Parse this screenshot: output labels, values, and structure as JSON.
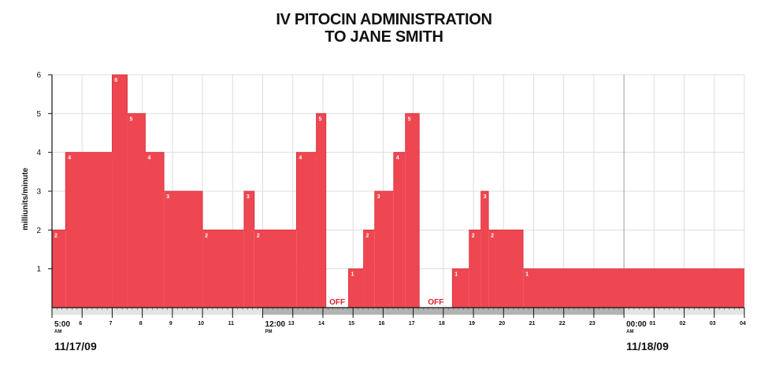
{
  "chart_data": {
    "type": "area",
    "title": [
      "IV PITOCIN ADMINISTRATION",
      "TO JANE SMITH"
    ],
    "ylabel": "milliunits/minute",
    "xlabel": "",
    "ylim": [
      0,
      6
    ],
    "yticks": [
      1,
      2,
      3,
      4,
      5,
      6
    ],
    "xlim_hours": [
      5,
      28
    ],
    "series_color": "#ee4752",
    "grid_color": "#dddddd",
    "night_band_color": "#b3b3b3",
    "day_band_color": "#e4e4e4",
    "x_ticks": [
      {
        "hour": 5,
        "label": "5:00",
        "sub": "AM",
        "major": true
      },
      {
        "hour": 6,
        "label": "6"
      },
      {
        "hour": 7,
        "label": "7"
      },
      {
        "hour": 8,
        "label": "8"
      },
      {
        "hour": 9,
        "label": "9"
      },
      {
        "hour": 10,
        "label": "10"
      },
      {
        "hour": 11,
        "label": "11"
      },
      {
        "hour": 12,
        "label": "12:00",
        "sub": "PM",
        "major": true
      },
      {
        "hour": 13,
        "label": "13"
      },
      {
        "hour": 14,
        "label": "14"
      },
      {
        "hour": 15,
        "label": "15"
      },
      {
        "hour": 16,
        "label": "16"
      },
      {
        "hour": 17,
        "label": "17"
      },
      {
        "hour": 18,
        "label": "18"
      },
      {
        "hour": 19,
        "label": "19"
      },
      {
        "hour": 20,
        "label": "20"
      },
      {
        "hour": 21,
        "label": "21"
      },
      {
        "hour": 22,
        "label": "22"
      },
      {
        "hour": 23,
        "label": "23"
      },
      {
        "hour": 24,
        "label": "00:00",
        "sub": "AM",
        "major": true
      },
      {
        "hour": 25,
        "label": "01"
      },
      {
        "hour": 26,
        "label": "02"
      },
      {
        "hour": 27,
        "label": "03"
      },
      {
        "hour": 28,
        "label": "04"
      }
    ],
    "dates": [
      {
        "hour": 5,
        "label": "11/17/09"
      },
      {
        "hour": 24,
        "label": "11/18/09"
      }
    ],
    "night_bands": [
      [
        12,
        24
      ]
    ],
    "steps": [
      {
        "start": 5.0,
        "end": 5.45,
        "value": 2
      },
      {
        "start": 5.45,
        "end": 7.0,
        "value": 4
      },
      {
        "start": 7.0,
        "end": 7.5,
        "value": 6
      },
      {
        "start": 7.5,
        "end": 8.1,
        "value": 5
      },
      {
        "start": 8.1,
        "end": 8.72,
        "value": 4
      },
      {
        "start": 8.72,
        "end": 10.0,
        "value": 3
      },
      {
        "start": 10.0,
        "end": 11.38,
        "value": 2
      },
      {
        "start": 11.38,
        "end": 11.72,
        "value": 3
      },
      {
        "start": 11.72,
        "end": 13.12,
        "value": 2
      },
      {
        "start": 13.12,
        "end": 13.78,
        "value": 4
      },
      {
        "start": 13.78,
        "end": 14.1,
        "value": 5
      },
      {
        "start": 14.1,
        "end": 14.85,
        "value": 0,
        "off": true
      },
      {
        "start": 14.85,
        "end": 15.35,
        "value": 1
      },
      {
        "start": 15.35,
        "end": 15.72,
        "value": 2
      },
      {
        "start": 15.72,
        "end": 16.35,
        "value": 3
      },
      {
        "start": 16.35,
        "end": 16.74,
        "value": 4
      },
      {
        "start": 16.74,
        "end": 17.2,
        "value": 5
      },
      {
        "start": 17.2,
        "end": 18.3,
        "value": 0,
        "off": true
      },
      {
        "start": 18.3,
        "end": 18.86,
        "value": 1
      },
      {
        "start": 18.86,
        "end": 19.25,
        "value": 2
      },
      {
        "start": 19.25,
        "end": 19.5,
        "value": 3
      },
      {
        "start": 19.5,
        "end": 20.65,
        "value": 2
      },
      {
        "start": 20.65,
        "end": 28.0,
        "value": 1
      }
    ],
    "off_label": "OFF"
  }
}
